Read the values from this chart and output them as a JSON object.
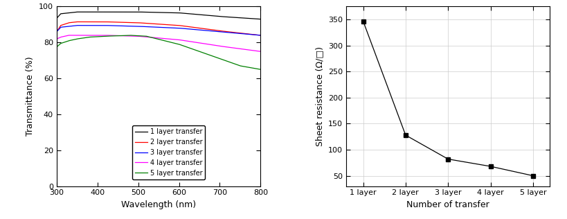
{
  "left_chart": {
    "xlabel": "Wavelength (nm)",
    "ylabel": "Transmittance (%)",
    "xlim": [
      300,
      800
    ],
    "ylim": [
      0,
      100
    ],
    "yticks": [
      0,
      20,
      40,
      60,
      80,
      100
    ],
    "xticks": [
      300,
      400,
      500,
      600,
      700,
      800
    ],
    "lines": [
      {
        "label": "1 layer transfer",
        "color": "black",
        "wavelengths": [
          300,
          310,
          330,
          350,
          380,
          420,
          500,
          600,
          700,
          800
        ],
        "transmittance": [
          93.5,
          96.0,
          96.5,
          97.0,
          97.0,
          97.0,
          97.0,
          96.5,
          94.5,
          93.0
        ]
      },
      {
        "label": "2 layer transfer",
        "color": "#ff0000",
        "wavelengths": [
          300,
          310,
          330,
          350,
          380,
          420,
          500,
          600,
          700,
          800
        ],
        "transmittance": [
          86.0,
          89.5,
          91.0,
          91.5,
          91.5,
          91.5,
          91.0,
          89.5,
          86.5,
          84.0
        ]
      },
      {
        "label": "3 layer transfer",
        "color": "#0000ff",
        "wavelengths": [
          300,
          310,
          330,
          350,
          380,
          420,
          500,
          600,
          700,
          800
        ],
        "transmittance": [
          86.0,
          88.5,
          89.0,
          89.5,
          89.5,
          89.5,
          89.0,
          88.0,
          86.0,
          84.0
        ]
      },
      {
        "label": "4 layer transfer",
        "color": "#ff00ff",
        "wavelengths": [
          300,
          310,
          330,
          350,
          380,
          420,
          500,
          600,
          700,
          800
        ],
        "transmittance": [
          82.0,
          83.0,
          84.0,
          84.0,
          84.0,
          84.0,
          83.5,
          81.5,
          78.0,
          75.0
        ]
      },
      {
        "label": "5 layer transfer",
        "color": "#008000",
        "wavelengths": [
          300,
          310,
          330,
          350,
          380,
          420,
          480,
          520,
          600,
          700,
          750,
          800
        ],
        "transmittance": [
          77.5,
          79.5,
          81.0,
          82.0,
          83.0,
          83.5,
          84.0,
          83.5,
          79.0,
          71.0,
          67.0,
          65.0
        ]
      }
    ]
  },
  "right_chart": {
    "xlabel": "Number of transfer",
    "ylabel": "Sheet resistance (Ω/□)",
    "x_labels": [
      "1 layer",
      "2 layer",
      "3 layer",
      "4 layer",
      "5 layer"
    ],
    "x_values": [
      1,
      2,
      3,
      4,
      5
    ],
    "y_values": [
      347,
      128,
      82,
      68,
      50
    ],
    "ylim": [
      30,
      375
    ],
    "yticks": [
      50,
      100,
      150,
      200,
      250,
      300,
      350
    ],
    "xlim": [
      0.6,
      5.4
    ],
    "color": "black",
    "marker": "s",
    "markersize": 4,
    "grid_color": "#cccccc"
  }
}
